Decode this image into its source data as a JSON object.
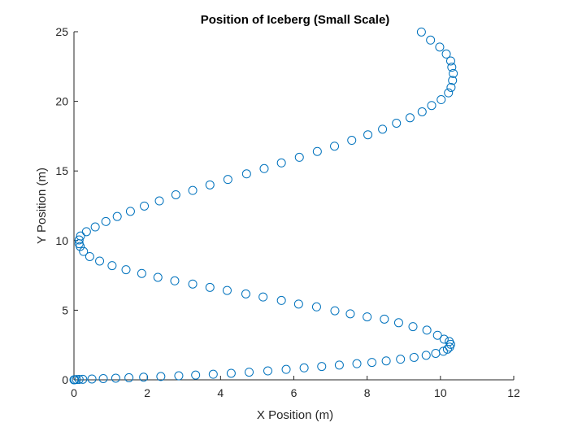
{
  "chart_data": {
    "type": "scatter",
    "title": "Position of Iceberg (Small Scale)",
    "xlabel": "X Position (m)",
    "ylabel": "Y Position (m)",
    "xlim": [
      0,
      12
    ],
    "ylim": [
      0,
      25
    ],
    "xticks": [
      0,
      2,
      4,
      6,
      8,
      10,
      12
    ],
    "yticks": [
      0,
      5,
      10,
      15,
      20,
      25
    ],
    "xtick_labels": [
      "0",
      "2",
      "4",
      "6",
      "8",
      "10",
      "12"
    ],
    "ytick_labels": [
      "0",
      "5",
      "10",
      "15",
      "20",
      "25"
    ],
    "grid": false,
    "marker": "open-circle",
    "marker_color": "#0072BD",
    "points": [
      [
        0.0,
        0.0
      ],
      [
        0.02,
        0.01
      ],
      [
        0.07,
        0.02
      ],
      [
        0.14,
        0.03
      ],
      [
        0.24,
        0.04
      ],
      [
        0.49,
        0.06
      ],
      [
        0.8,
        0.09
      ],
      [
        1.14,
        0.12
      ],
      [
        1.5,
        0.15
      ],
      [
        1.9,
        0.19
      ],
      [
        2.37,
        0.24
      ],
      [
        2.86,
        0.29
      ],
      [
        3.32,
        0.34
      ],
      [
        3.8,
        0.4
      ],
      [
        4.29,
        0.47
      ],
      [
        4.78,
        0.55
      ],
      [
        5.29,
        0.64
      ],
      [
        5.79,
        0.75
      ],
      [
        6.28,
        0.86
      ],
      [
        6.76,
        0.96
      ],
      [
        7.24,
        1.06
      ],
      [
        7.72,
        1.16
      ],
      [
        8.13,
        1.25
      ],
      [
        8.52,
        1.36
      ],
      [
        8.91,
        1.48
      ],
      [
        9.28,
        1.61
      ],
      [
        9.61,
        1.76
      ],
      [
        9.87,
        1.9
      ],
      [
        10.08,
        2.05
      ],
      [
        10.19,
        2.2
      ],
      [
        10.25,
        2.35
      ],
      [
        10.28,
        2.55
      ],
      [
        10.24,
        2.75
      ],
      [
        10.1,
        2.92
      ],
      [
        9.92,
        3.2
      ],
      [
        9.63,
        3.57
      ],
      [
        9.25,
        3.82
      ],
      [
        8.86,
        4.1
      ],
      [
        8.47,
        4.36
      ],
      [
        8.0,
        4.52
      ],
      [
        7.54,
        4.74
      ],
      [
        7.12,
        4.96
      ],
      [
        6.62,
        5.24
      ],
      [
        6.13,
        5.44
      ],
      [
        5.66,
        5.7
      ],
      [
        5.16,
        5.95
      ],
      [
        4.69,
        6.17
      ],
      [
        4.18,
        6.42
      ],
      [
        3.71,
        6.64
      ],
      [
        3.24,
        6.88
      ],
      [
        2.75,
        7.11
      ],
      [
        2.29,
        7.36
      ],
      [
        1.85,
        7.64
      ],
      [
        1.42,
        7.91
      ],
      [
        1.04,
        8.2
      ],
      [
        0.7,
        8.53
      ],
      [
        0.43,
        8.85
      ],
      [
        0.26,
        9.22
      ],
      [
        0.17,
        9.58
      ],
      [
        0.14,
        9.78
      ],
      [
        0.14,
        10.05
      ],
      [
        0.18,
        10.33
      ],
      [
        0.34,
        10.64
      ],
      [
        0.58,
        10.98
      ],
      [
        0.87,
        11.37
      ],
      [
        1.18,
        11.73
      ],
      [
        1.54,
        12.1
      ],
      [
        1.92,
        12.48
      ],
      [
        2.33,
        12.85
      ],
      [
        2.78,
        13.29
      ],
      [
        3.24,
        13.6
      ],
      [
        3.71,
        14.0
      ],
      [
        4.2,
        14.39
      ],
      [
        4.71,
        14.79
      ],
      [
        5.19,
        15.17
      ],
      [
        5.66,
        15.58
      ],
      [
        6.15,
        15.98
      ],
      [
        6.64,
        16.4
      ],
      [
        7.11,
        16.78
      ],
      [
        7.58,
        17.2
      ],
      [
        8.02,
        17.6
      ],
      [
        8.42,
        18.0
      ],
      [
        8.8,
        18.43
      ],
      [
        9.17,
        18.82
      ],
      [
        9.5,
        19.25
      ],
      [
        9.76,
        19.7
      ],
      [
        10.02,
        20.12
      ],
      [
        10.22,
        20.61
      ],
      [
        10.29,
        21.0
      ],
      [
        10.33,
        21.5
      ],
      [
        10.35,
        22.0
      ],
      [
        10.31,
        22.45
      ],
      [
        10.28,
        22.9
      ],
      [
        10.16,
        23.4
      ],
      [
        9.98,
        23.9
      ],
      [
        9.73,
        24.4
      ],
      [
        9.48,
        24.98
      ]
    ]
  }
}
